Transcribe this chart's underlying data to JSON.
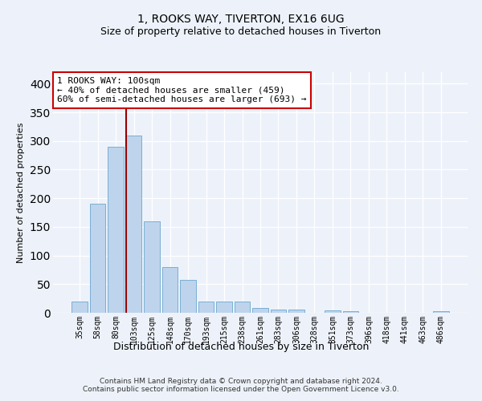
{
  "title1": "1, ROOKS WAY, TIVERTON, EX16 6UG",
  "title2": "Size of property relative to detached houses in Tiverton",
  "xlabel": "Distribution of detached houses by size in Tiverton",
  "ylabel": "Number of detached properties",
  "categories": [
    "35sqm",
    "58sqm",
    "80sqm",
    "103sqm",
    "125sqm",
    "148sqm",
    "170sqm",
    "193sqm",
    "215sqm",
    "238sqm",
    "261sqm",
    "283sqm",
    "306sqm",
    "328sqm",
    "351sqm",
    "373sqm",
    "396sqm",
    "418sqm",
    "441sqm",
    "463sqm",
    "486sqm"
  ],
  "values": [
    20,
    190,
    290,
    310,
    160,
    80,
    57,
    20,
    20,
    20,
    8,
    5,
    5,
    0,
    4,
    3,
    0,
    0,
    0,
    0,
    3
  ],
  "bar_color": "#bdd4ec",
  "bar_edge_color": "#7aafd4",
  "vline_color": "#990000",
  "vline_x_index": 3,
  "annotation_text": "1 ROOKS WAY: 100sqm\n← 40% of detached houses are smaller (459)\n60% of semi-detached houses are larger (693) →",
  "annotation_box_facecolor": "#ffffff",
  "annotation_box_edgecolor": "#cc0000",
  "ylim": [
    0,
    420
  ],
  "yticks": [
    0,
    50,
    100,
    150,
    200,
    250,
    300,
    350,
    400
  ],
  "footer": "Contains HM Land Registry data © Crown copyright and database right 2024.\nContains public sector information licensed under the Open Government Licence v3.0.",
  "bg_color": "#edf2fa",
  "grid_color": "#ffffff",
  "title1_fontsize": 10,
  "title2_fontsize": 9
}
